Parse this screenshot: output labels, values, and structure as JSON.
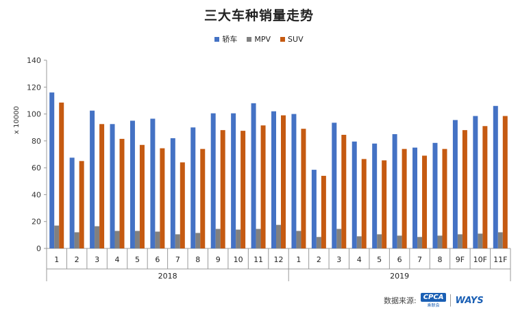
{
  "chart_data": {
    "type": "bar",
    "title": "三大车种销量走势",
    "ylabel": "x 10000",
    "ylim": [
      0,
      140
    ],
    "yticks": [
      0,
      20,
      40,
      60,
      80,
      100,
      120,
      140
    ],
    "legend_position": "top-center",
    "grid": false,
    "categories": [
      "1",
      "2",
      "3",
      "4",
      "5",
      "6",
      "7",
      "8",
      "9",
      "10",
      "11",
      "12",
      "1",
      "2",
      "3",
      "4",
      "5",
      "6",
      "7",
      "8",
      "9F",
      "10F",
      "11F"
    ],
    "groups": [
      {
        "label": "2018",
        "start": 0,
        "end": 11
      },
      {
        "label": "2019",
        "start": 12,
        "end": 22
      }
    ],
    "series": [
      {
        "name": "轿车",
        "color": "#4472c4",
        "values": [
          116,
          67.5,
          102.5,
          92.5,
          95,
          96.5,
          82,
          90,
          100.5,
          100.5,
          108,
          102,
          100,
          58.5,
          93.5,
          79.5,
          78,
          85,
          75,
          78.5,
          95.5,
          98.5,
          106
        ]
      },
      {
        "name": "MPV",
        "color": "#808080",
        "values": [
          17,
          12,
          16.5,
          13,
          13,
          12.5,
          10.5,
          11.5,
          14.5,
          14,
          14.5,
          17.5,
          13,
          8.5,
          14.5,
          9,
          10.5,
          9.5,
          8.5,
          9.5,
          10.5,
          11,
          12
        ]
      },
      {
        "name": "SUV",
        "color": "#c55a11",
        "values": [
          108.5,
          65,
          92.5,
          81.5,
          77,
          74.5,
          64,
          74,
          88,
          87.5,
          91.5,
          99,
          89,
          54,
          84.5,
          66.5,
          65.5,
          74,
          69,
          74,
          88,
          91,
          98.5
        ]
      }
    ]
  },
  "footer": {
    "source_label": "数据来源:",
    "cpca_logo": "CPCA",
    "cpca_sub": "乘联会",
    "ways_logo": "WAYS"
  }
}
